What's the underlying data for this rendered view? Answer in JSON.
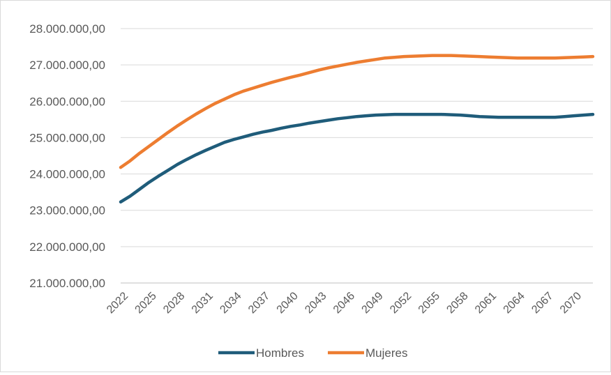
{
  "chart_data": {
    "type": "line",
    "title": "",
    "xlabel": "",
    "ylabel": "",
    "ylim": [
      21000000,
      28000000
    ],
    "y_ticks": [
      21000000,
      22000000,
      23000000,
      24000000,
      25000000,
      26000000,
      27000000,
      28000000
    ],
    "y_tick_labels": [
      "21.000.000,00",
      "22.000.000,00",
      "23.000.000,00",
      "24.000.000,00",
      "25.000.000,00",
      "26.000.000,00",
      "27.000.000,00",
      "28.000.000,00"
    ],
    "x_tick_labels": [
      "2022",
      "2025",
      "2028",
      "2031",
      "2034",
      "2037",
      "2040",
      "2043",
      "2046",
      "2049",
      "2052",
      "2055",
      "2058",
      "2061",
      "2064",
      "2067",
      "2070"
    ],
    "grid": true,
    "legend_position": "bottom",
    "x": [
      2022,
      2023,
      2024,
      2025,
      2026,
      2027,
      2028,
      2029,
      2030,
      2031,
      2032,
      2033,
      2034,
      2035,
      2036,
      2037,
      2038,
      2039,
      2040,
      2041,
      2042,
      2043,
      2044,
      2045,
      2046,
      2047,
      2048,
      2049,
      2050,
      2051,
      2052,
      2053,
      2054,
      2055,
      2056,
      2057,
      2058,
      2059,
      2060,
      2061,
      2062,
      2063,
      2064,
      2065,
      2066,
      2067,
      2068,
      2069,
      2070,
      2071,
      2072
    ],
    "series": [
      {
        "name": "Hombres",
        "color": "#1f5c7a",
        "values": [
          23230000,
          23390000,
          23580000,
          23770000,
          23940000,
          24100000,
          24260000,
          24400000,
          24530000,
          24650000,
          24760000,
          24870000,
          24950000,
          25020000,
          25090000,
          25150000,
          25200000,
          25260000,
          25310000,
          25350000,
          25400000,
          25440000,
          25480000,
          25520000,
          25550000,
          25580000,
          25600000,
          25620000,
          25630000,
          25640000,
          25640000,
          25640000,
          25640000,
          25640000,
          25640000,
          25630000,
          25620000,
          25600000,
          25580000,
          25570000,
          25560000,
          25560000,
          25560000,
          25560000,
          25560000,
          25560000,
          25560000,
          25580000,
          25600000,
          25620000,
          25640000
        ]
      },
      {
        "name": "Mujeres",
        "color": "#ed7d31",
        "values": [
          24180000,
          24360000,
          24570000,
          24760000,
          24950000,
          25140000,
          25320000,
          25490000,
          25650000,
          25800000,
          25940000,
          26060000,
          26180000,
          26280000,
          26360000,
          26440000,
          26520000,
          26590000,
          26660000,
          26720000,
          26790000,
          26860000,
          26920000,
          26970000,
          27020000,
          27070000,
          27110000,
          27150000,
          27190000,
          27210000,
          27230000,
          27240000,
          27250000,
          27260000,
          27260000,
          27260000,
          27250000,
          27240000,
          27230000,
          27220000,
          27210000,
          27200000,
          27190000,
          27190000,
          27190000,
          27190000,
          27190000,
          27200000,
          27210000,
          27220000,
          27230000
        ]
      }
    ]
  }
}
